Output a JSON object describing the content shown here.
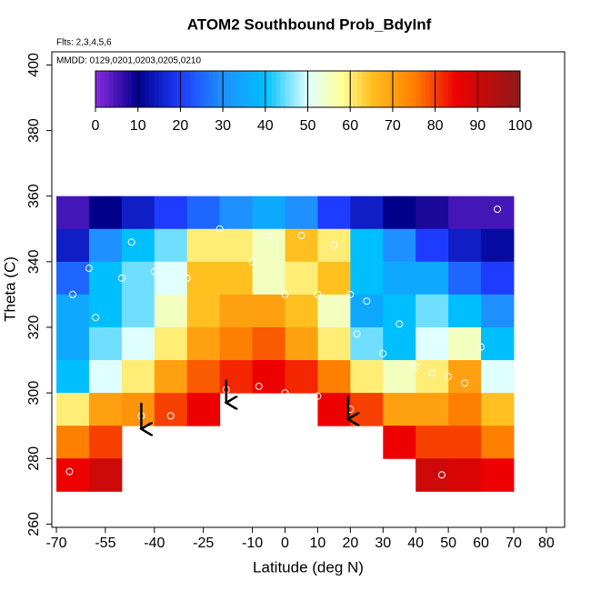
{
  "chart_data": {
    "type": "heatmap",
    "title": "ATOM2 Southbound Prob_BdyInf",
    "subtitles": [
      "Flts: 2,3,4,5,6",
      "MMDD: 0129,0201,0203,0205,0210"
    ],
    "x_label": "Latitude (deg N)",
    "y_label": "Theta (C)",
    "xlim": [
      -71.4,
      85.6
    ],
    "ylim": [
      259,
      404
    ],
    "xticks": [
      -70,
      -55,
      -40,
      -25,
      -10,
      0,
      10,
      20,
      30,
      40,
      50,
      60,
      70,
      80
    ],
    "yticks": [
      260,
      280,
      300,
      320,
      340,
      360,
      380,
      400
    ],
    "x": [
      -65,
      -55,
      -45,
      -35,
      -25,
      -15,
      -5,
      5,
      15,
      25,
      35,
      45,
      55,
      65
    ],
    "y": [
      355,
      345,
      335,
      325,
      315,
      305,
      295,
      285,
      275
    ],
    "z": [
      [
        5,
        10,
        15,
        20,
        25,
        30,
        35,
        30,
        20,
        15,
        10,
        8,
        5,
        5
      ],
      [
        15,
        30,
        40,
        45,
        60,
        60,
        55,
        65,
        60,
        40,
        30,
        20,
        15,
        12
      ],
      [
        25,
        40,
        45,
        50,
        65,
        65,
        55,
        60,
        65,
        40,
        35,
        35,
        25,
        20
      ],
      [
        35,
        40,
        45,
        55,
        65,
        70,
        70,
        65,
        55,
        35,
        40,
        45,
        40,
        30
      ],
      [
        35,
        45,
        50,
        60,
        70,
        75,
        78,
        70,
        60,
        45,
        40,
        50,
        55,
        40
      ],
      [
        40,
        50,
        60,
        70,
        78,
        82,
        85,
        82,
        75,
        60,
        55,
        60,
        70,
        50
      ],
      [
        60,
        70,
        72,
        80,
        85,
        null,
        null,
        null,
        85,
        80,
        70,
        70,
        75,
        65
      ],
      [
        75,
        80,
        null,
        null,
        null,
        null,
        null,
        null,
        null,
        null,
        85,
        80,
        80,
        75
      ],
      [
        85,
        90,
        null,
        null,
        null,
        null,
        null,
        null,
        null,
        null,
        null,
        90,
        88,
        85
      ]
    ],
    "colorscale": {
      "stops": [
        0,
        10,
        20,
        30,
        40,
        50,
        58,
        65,
        75,
        85,
        100
      ],
      "colors": [
        "#8a2be2",
        "#00008b",
        "#1e3cff",
        "#1e90ff",
        "#00bfff",
        "#e0ffff",
        "#ffff99",
        "#ffc020",
        "#ff8000",
        "#ee0000",
        "#8b1a1a"
      ]
    },
    "colorbar_ticks": [
      0,
      10,
      20,
      30,
      40,
      50,
      60,
      70,
      80,
      90,
      100
    ],
    "points": {
      "x": [
        -65,
        -60,
        -58,
        -50,
        -47,
        -40,
        -30,
        -20,
        -10,
        -5,
        0,
        5,
        10,
        15,
        20,
        22,
        25,
        30,
        35,
        40,
        45,
        50,
        55,
        60,
        65,
        -66,
        -44,
        -18,
        -8,
        20,
        48,
        -35,
        0,
        10
      ],
      "y": [
        330,
        338,
        323,
        335,
        346,
        337,
        335,
        350,
        340,
        348,
        330,
        348,
        330,
        345,
        330,
        318,
        328,
        312,
        321,
        308,
        306,
        305,
        303,
        314,
        356,
        276,
        293,
        301,
        302,
        295,
        275,
        293,
        300,
        299
      ]
    },
    "arrows": [
      {
        "x": -44,
        "y_from": 297,
        "y_to": 289
      },
      {
        "x": -18,
        "y_from": 304,
        "y_to": 297
      },
      {
        "x": 19.3,
        "y_from": 299,
        "y_to": 292
      }
    ]
  }
}
